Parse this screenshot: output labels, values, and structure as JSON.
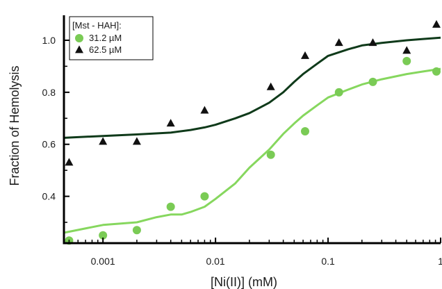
{
  "chart_data": {
    "type": "scatter",
    "xlabel": "[Ni(II)] (mM)",
    "ylabel": "Fraction of Hemolysis",
    "x_scale": "log",
    "xlim": [
      0.00045,
      1.0
    ],
    "ylim": [
      0.22,
      1.08
    ],
    "x_ticks": [
      0.001,
      0.01,
      0.1,
      1
    ],
    "x_tick_labels": [
      "0.001",
      "0.01",
      "0.1",
      "1"
    ],
    "y_ticks": [
      0.4,
      0.6,
      0.8,
      1.0
    ],
    "y_tick_labels": [
      "0.4",
      "0.6",
      "0.8",
      "1.0"
    ],
    "legend": {
      "title": "[Mst - HAH]:",
      "position": "top-left"
    },
    "series": [
      {
        "name": "31.2 µM",
        "marker": "circle",
        "color": "#7acb55",
        "fit_color": "#86d75e",
        "x": [
          0.0005,
          0.001,
          0.002,
          0.004,
          0.008,
          0.031,
          0.0625,
          0.125,
          0.25,
          0.5,
          1.0
        ],
        "y": [
          0.23,
          0.25,
          0.27,
          0.36,
          0.4,
          0.56,
          0.65,
          0.8,
          0.84,
          0.92,
          0.88
        ],
        "fit_x": [
          0.00045,
          0.001,
          0.002,
          0.003,
          0.004,
          0.005,
          0.006,
          0.008,
          0.01,
          0.015,
          0.02,
          0.03,
          0.04,
          0.05,
          0.06,
          0.08,
          0.1,
          0.15,
          0.2,
          0.3,
          0.5,
          0.7,
          1.0
        ],
        "fit_y": [
          0.26,
          0.29,
          0.3,
          0.32,
          0.33,
          0.33,
          0.34,
          0.36,
          0.39,
          0.45,
          0.51,
          0.58,
          0.64,
          0.68,
          0.71,
          0.75,
          0.78,
          0.81,
          0.83,
          0.85,
          0.87,
          0.88,
          0.89
        ]
      },
      {
        "name": "62.5 µM",
        "marker": "triangle",
        "color": "#111111",
        "fit_color": "#0f3a1a",
        "x": [
          0.0005,
          0.001,
          0.002,
          0.004,
          0.008,
          0.031,
          0.0625,
          0.125,
          0.25,
          0.5,
          1.0
        ],
        "y": [
          0.53,
          0.61,
          0.61,
          0.68,
          0.73,
          0.82,
          0.94,
          0.99,
          0.99,
          0.96,
          1.06
        ],
        "fit_x": [
          0.00045,
          0.001,
          0.002,
          0.004,
          0.006,
          0.008,
          0.01,
          0.015,
          0.02,
          0.03,
          0.04,
          0.05,
          0.06,
          0.08,
          0.1,
          0.15,
          0.2,
          0.3,
          0.5,
          0.7,
          1.0
        ],
        "fit_y": [
          0.625,
          0.632,
          0.638,
          0.645,
          0.655,
          0.665,
          0.675,
          0.7,
          0.72,
          0.76,
          0.8,
          0.84,
          0.87,
          0.91,
          0.94,
          0.965,
          0.98,
          0.99,
          1.0,
          1.005,
          1.01
        ]
      }
    ]
  }
}
